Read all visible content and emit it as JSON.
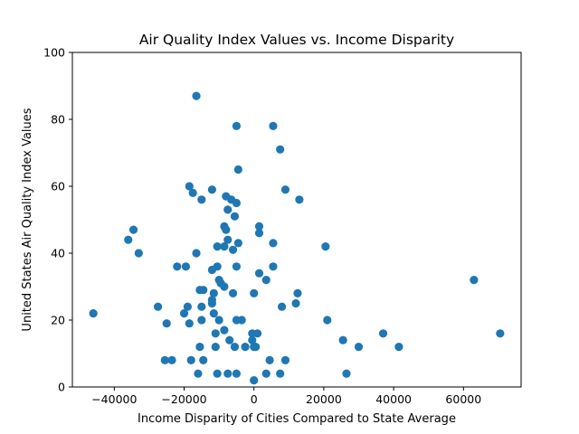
{
  "chart_data": {
    "type": "scatter",
    "title": "Air Quality Index Values vs. Income Disparity",
    "xlabel": "Income Disparity of Cities Compared to State Average",
    "ylabel": "United States Air Quality Index Values",
    "xlim": [
      -52000,
      76500
    ],
    "ylim": [
      0,
      100
    ],
    "xticks": [
      -40000,
      -20000,
      0,
      20000,
      40000,
      60000
    ],
    "xtick_labels": [
      "−40000",
      "−20000",
      "0",
      "20000",
      "40000",
      "60000"
    ],
    "yticks": [
      0,
      20,
      40,
      60,
      80,
      100
    ],
    "ytick_labels": [
      "0",
      "20",
      "40",
      "60",
      "80",
      "100"
    ],
    "grid": false,
    "marker_color": "#1f77b4",
    "points": [
      {
        "x": -46000,
        "y": 22
      },
      {
        "x": -34500,
        "y": 47
      },
      {
        "x": -36000,
        "y": 44
      },
      {
        "x": -33000,
        "y": 40
      },
      {
        "x": -27500,
        "y": 24
      },
      {
        "x": -25500,
        "y": 8
      },
      {
        "x": -25000,
        "y": 19
      },
      {
        "x": -23500,
        "y": 8
      },
      {
        "x": -22000,
        "y": 36
      },
      {
        "x": -20000,
        "y": 22
      },
      {
        "x": -19500,
        "y": 36
      },
      {
        "x": -19000,
        "y": 24
      },
      {
        "x": -18500,
        "y": 60
      },
      {
        "x": -18500,
        "y": 19
      },
      {
        "x": -18000,
        "y": 8
      },
      {
        "x": -17500,
        "y": 58
      },
      {
        "x": -16500,
        "y": 87
      },
      {
        "x": -16500,
        "y": 40
      },
      {
        "x": -16000,
        "y": 4
      },
      {
        "x": -15500,
        "y": 29
      },
      {
        "x": -15500,
        "y": 12
      },
      {
        "x": -15000,
        "y": 56
      },
      {
        "x": -15000,
        "y": 24
      },
      {
        "x": -15000,
        "y": 20
      },
      {
        "x": -14500,
        "y": 29
      },
      {
        "x": -14500,
        "y": 8
      },
      {
        "x": -12000,
        "y": 59
      },
      {
        "x": -12000,
        "y": 35
      },
      {
        "x": -12000,
        "y": 26
      },
      {
        "x": -12000,
        "y": 25
      },
      {
        "x": -11500,
        "y": 28
      },
      {
        "x": -11500,
        "y": 22
      },
      {
        "x": -11000,
        "y": 16
      },
      {
        "x": -11000,
        "y": 12
      },
      {
        "x": -10500,
        "y": 42
      },
      {
        "x": -10500,
        "y": 36
      },
      {
        "x": -10500,
        "y": 4
      },
      {
        "x": -10000,
        "y": 32
      },
      {
        "x": -10000,
        "y": 20
      },
      {
        "x": -9500,
        "y": 31
      },
      {
        "x": -8500,
        "y": 48
      },
      {
        "x": -8500,
        "y": 30
      },
      {
        "x": -8500,
        "y": 42
      },
      {
        "x": -8500,
        "y": 17
      },
      {
        "x": -8000,
        "y": 57
      },
      {
        "x": -8000,
        "y": 47
      },
      {
        "x": -7500,
        "y": 53
      },
      {
        "x": -7500,
        "y": 44
      },
      {
        "x": -7500,
        "y": 4
      },
      {
        "x": -7000,
        "y": 14
      },
      {
        "x": -6500,
        "y": 56
      },
      {
        "x": -6000,
        "y": 41
      },
      {
        "x": -6000,
        "y": 28
      },
      {
        "x": -5500,
        "y": 51
      },
      {
        "x": -5500,
        "y": 12
      },
      {
        "x": -5000,
        "y": 78
      },
      {
        "x": -5000,
        "y": 55
      },
      {
        "x": -5000,
        "y": 36
      },
      {
        "x": -5000,
        "y": 20
      },
      {
        "x": -5000,
        "y": 4
      },
      {
        "x": -4500,
        "y": 65
      },
      {
        "x": -4500,
        "y": 43
      },
      {
        "x": -3500,
        "y": 20
      },
      {
        "x": -2500,
        "y": 12
      },
      {
        "x": -500,
        "y": 16
      },
      {
        "x": -500,
        "y": 14
      },
      {
        "x": 0,
        "y": 28
      },
      {
        "x": 0,
        "y": 12
      },
      {
        "x": 0,
        "y": 2
      },
      {
        "x": 500,
        "y": 12
      },
      {
        "x": 1000,
        "y": 16
      },
      {
        "x": 1500,
        "y": 48
      },
      {
        "x": 1500,
        "y": 46
      },
      {
        "x": 1500,
        "y": 34
      },
      {
        "x": 3500,
        "y": 32
      },
      {
        "x": 3500,
        "y": 4
      },
      {
        "x": 4500,
        "y": 8
      },
      {
        "x": 5500,
        "y": 78
      },
      {
        "x": 5500,
        "y": 43
      },
      {
        "x": 5500,
        "y": 36
      },
      {
        "x": 7500,
        "y": 71
      },
      {
        "x": 7500,
        "y": 4
      },
      {
        "x": 8000,
        "y": 24
      },
      {
        "x": 9000,
        "y": 59
      },
      {
        "x": 9000,
        "y": 8
      },
      {
        "x": 12000,
        "y": 25
      },
      {
        "x": 12500,
        "y": 28
      },
      {
        "x": 13000,
        "y": 56
      },
      {
        "x": 20500,
        "y": 42
      },
      {
        "x": 21000,
        "y": 20
      },
      {
        "x": 25500,
        "y": 14
      },
      {
        "x": 26500,
        "y": 4
      },
      {
        "x": 30000,
        "y": 12
      },
      {
        "x": 37000,
        "y": 16
      },
      {
        "x": 41500,
        "y": 12
      },
      {
        "x": 63000,
        "y": 32
      },
      {
        "x": 70500,
        "y": 16
      }
    ]
  }
}
